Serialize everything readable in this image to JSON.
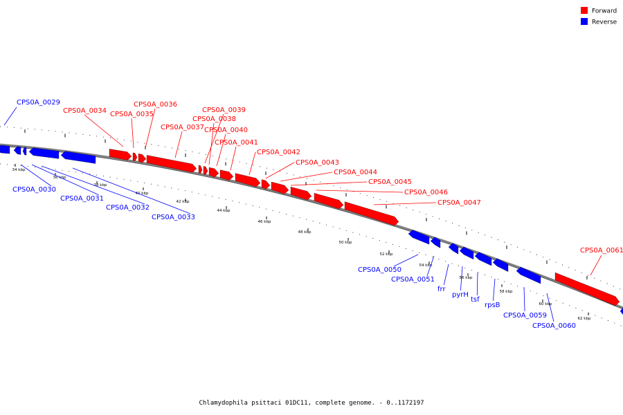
{
  "legend": {
    "forward_label": "Forward",
    "reverse_label": "Reverse",
    "forward_color": "#ff0000",
    "reverse_color": "#0000ff"
  },
  "caption": "Chlamydophila psittaci 01DC11, complete genome. - 0..1172197",
  "scale": {
    "unit": "kbp",
    "tick_labels": [
      "34 kbp",
      "36 kbp",
      "38 kbp",
      "40 kbp",
      "42 kbp",
      "44 kbp",
      "46 kbp",
      "48 kbp",
      "50 kbp",
      "52 kbp",
      "54 kbp",
      "56 kbp",
      "58 kbp",
      "60 kbp",
      "62 kbp"
    ]
  },
  "features": {
    "forward": [
      {
        "name": "CPS0A_0034"
      },
      {
        "name": "CPS0A_0035"
      },
      {
        "name": "CPS0A_0036"
      },
      {
        "name": "CPS0A_0037"
      },
      {
        "name": "CPS0A_0039"
      },
      {
        "name": "CPS0A_0038"
      },
      {
        "name": "CPS0A_0040"
      },
      {
        "name": "CPS0A_0041"
      },
      {
        "name": "CPS0A_0042"
      },
      {
        "name": "CPS0A_0043"
      },
      {
        "name": "CPS0A_0044"
      },
      {
        "name": "CPS0A_0045"
      },
      {
        "name": "CPS0A_0046"
      },
      {
        "name": "CPS0A_0047"
      },
      {
        "name": "CPS0A_0061"
      }
    ],
    "reverse": [
      {
        "name": "CPS0A_0029"
      },
      {
        "name": "CPS0A_0030"
      },
      {
        "name": "CPS0A_0031"
      },
      {
        "name": "CPS0A_0032"
      },
      {
        "name": "CPS0A_0033"
      },
      {
        "name": "CPS0A_0050"
      },
      {
        "name": "CPS0A_0051"
      },
      {
        "name": "frr"
      },
      {
        "name": "pyrH"
      },
      {
        "name": "tsf"
      },
      {
        "name": "rpsB"
      },
      {
        "name": "CPS0A_0059"
      },
      {
        "name": "CPS0A_0060"
      }
    ]
  }
}
